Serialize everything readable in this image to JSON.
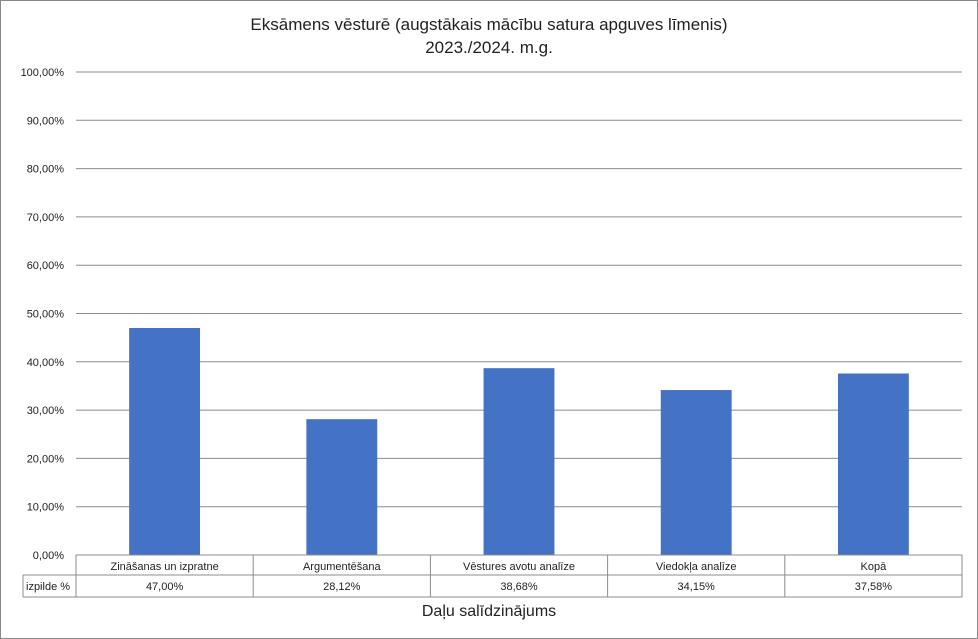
{
  "chart_data": {
    "type": "bar",
    "title": "Eksāmens vēsturē (augstākais mācību satura apguves līmenis)",
    "subtitle": "2023./2024. m.g.",
    "xlabel": "Daļu salīdzinājums",
    "ylabel": "",
    "ylim": [
      0,
      100
    ],
    "yticks": [
      "0,00%",
      "10,00%",
      "20,00%",
      "30,00%",
      "40,00%",
      "50,00%",
      "60,00%",
      "70,00%",
      "80,00%",
      "90,00%",
      "100,00%"
    ],
    "categories": [
      "Zināšanas un izpratne",
      "Argumentēšana",
      "Vēstures avotu analīze",
      "Viedokļa analīze",
      "Kopā"
    ],
    "series": [
      {
        "name": "izpilde %",
        "values": [
          47.0,
          28.12,
          38.68,
          34.15,
          37.58
        ],
        "labels": [
          "47,00%",
          "28,12%",
          "38,68%",
          "34,15%",
          "37,58%"
        ],
        "color": "#4472C4"
      }
    ],
    "grid": true,
    "legend": "data-table"
  }
}
